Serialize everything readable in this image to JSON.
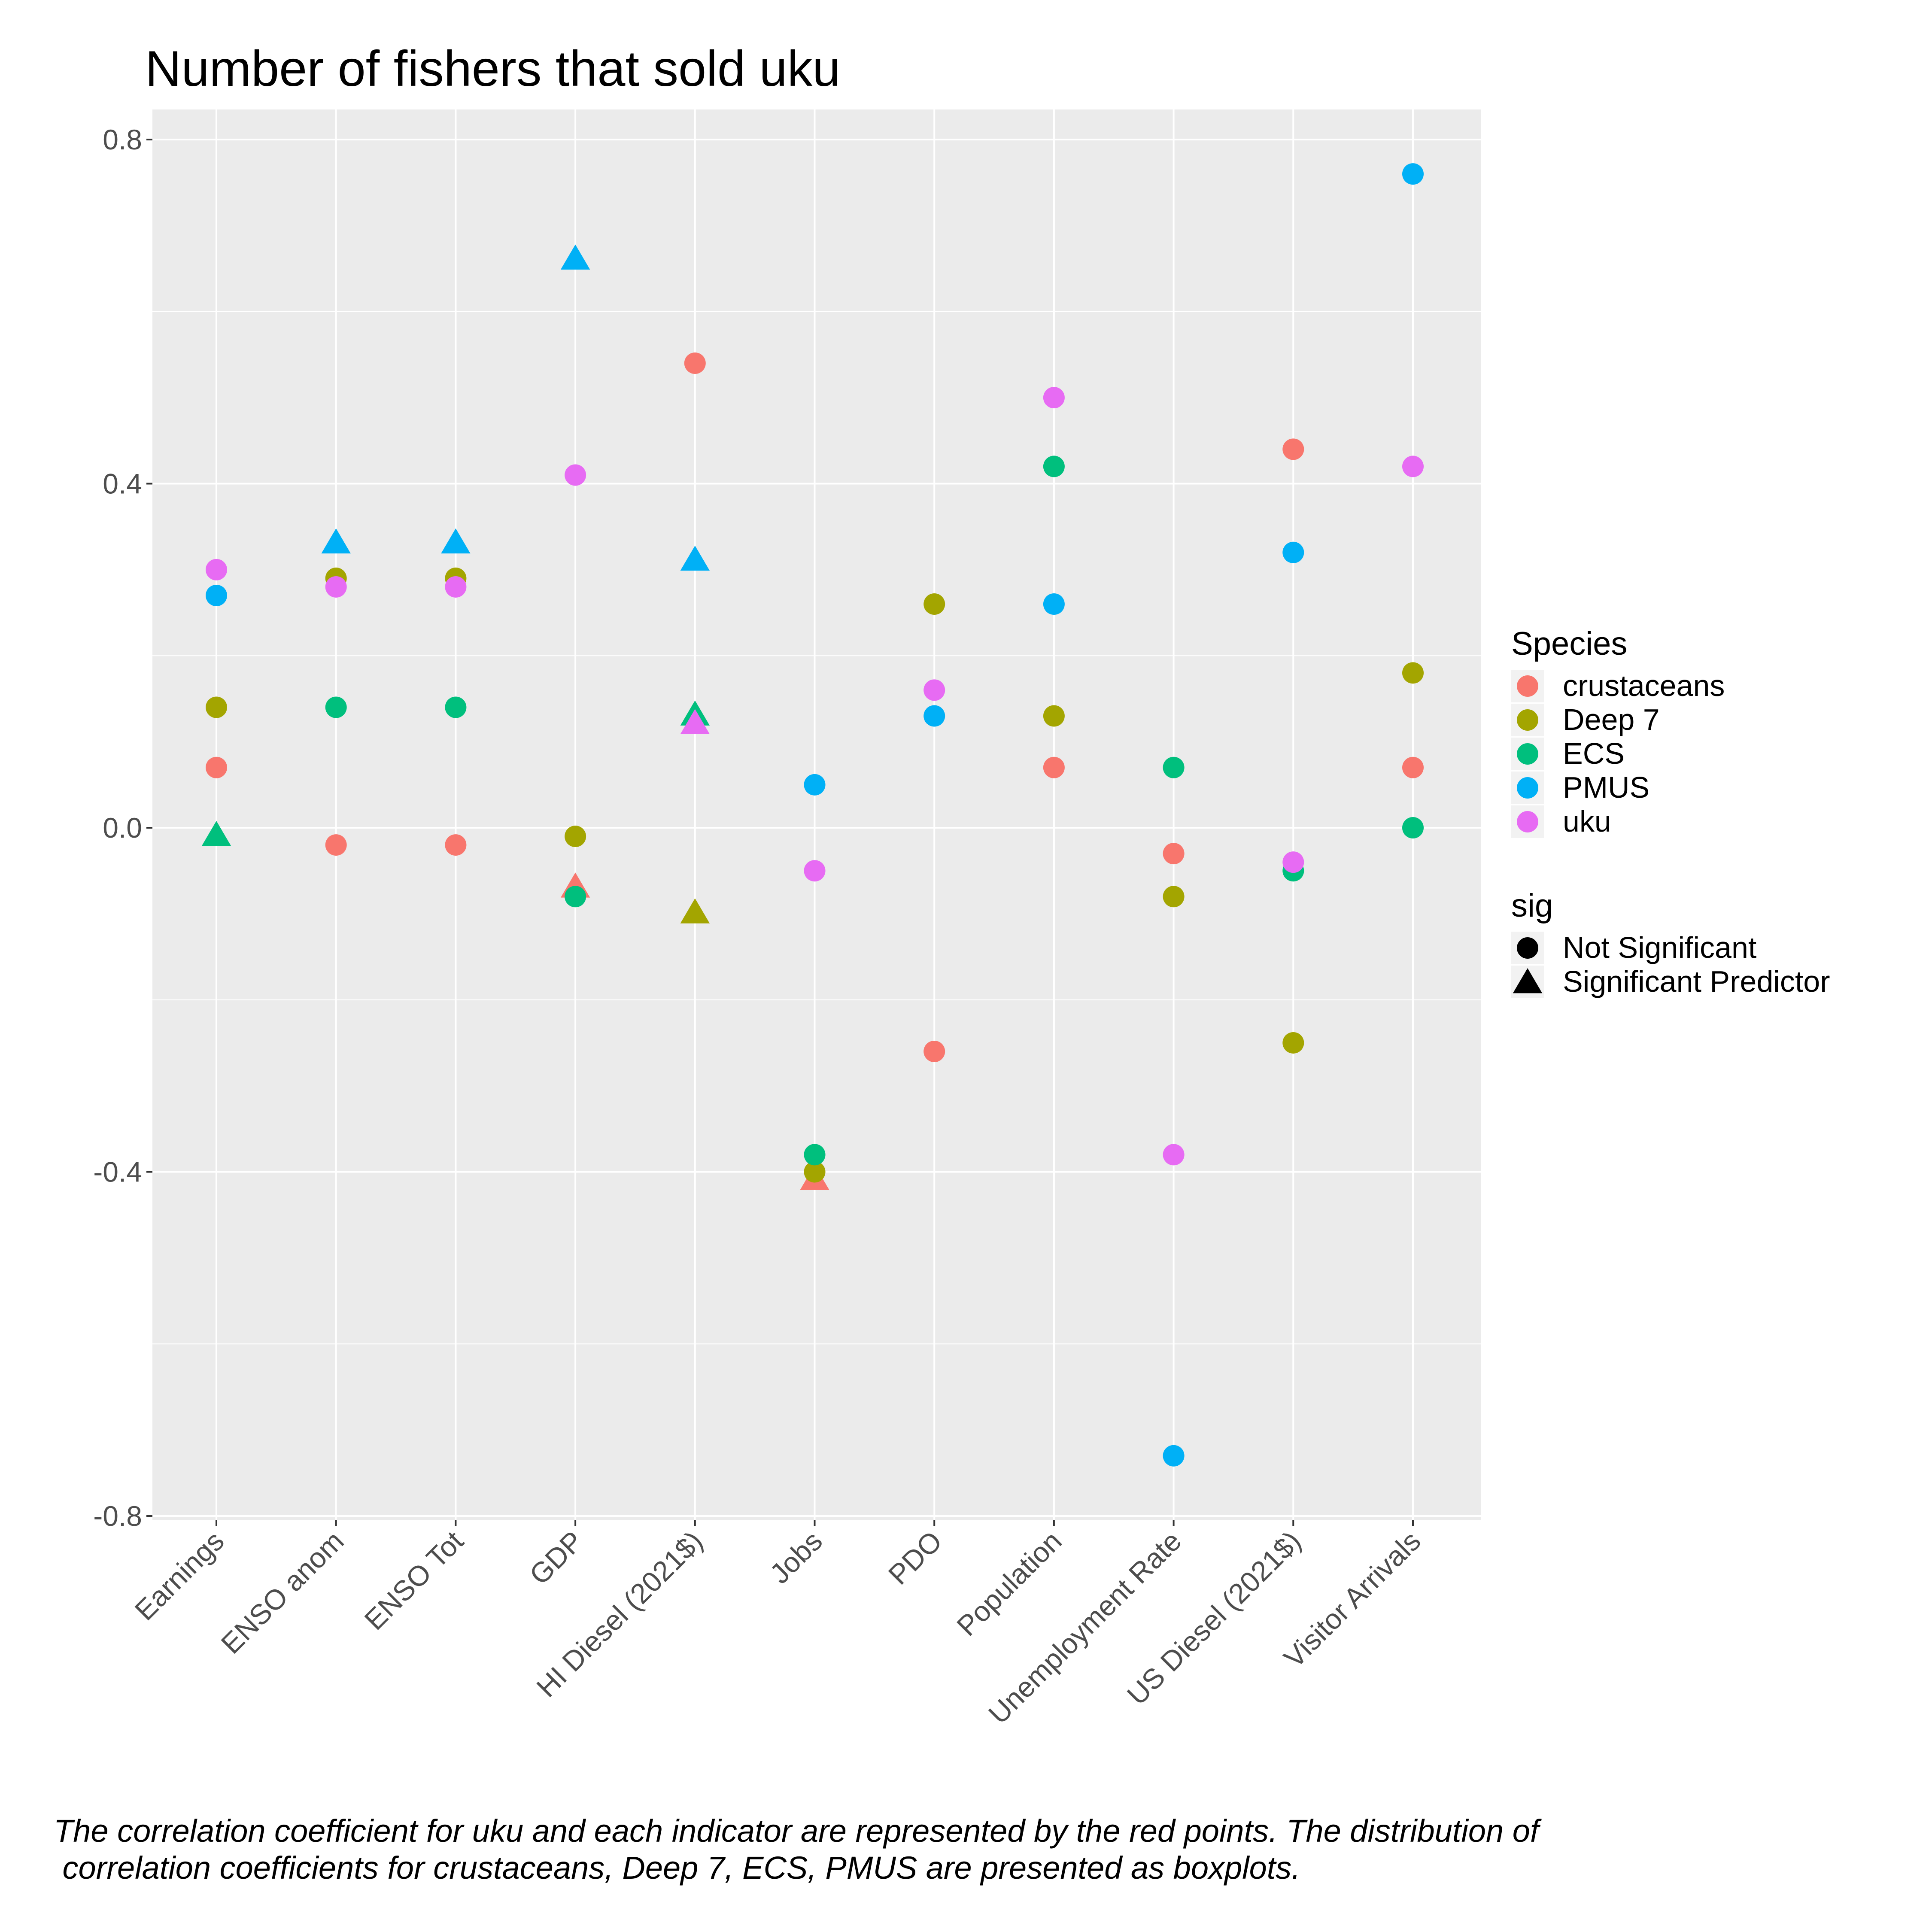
{
  "chart_data": {
    "type": "scatter",
    "title": "Number of fishers that sold uku",
    "xlabel": "",
    "ylabel": "",
    "ylim": [
      -0.8,
      0.8
    ],
    "yticks": [
      -0.8,
      -0.4,
      0.0,
      0.4,
      0.8
    ],
    "ytick_labels": [
      "-0.8",
      "-0.4",
      "0.0",
      "0.4",
      "0.8"
    ],
    "grid": true,
    "legend_position": "right",
    "categories": [
      "Earnings",
      "ENSO anom",
      "ENSO Tot",
      "GDP",
      "HI Diesel (2021$)",
      "Jobs",
      "PDO",
      "Population",
      "Unemployment Rate",
      "US Diesel (2021$)",
      "Visitor Arrivals"
    ],
    "series": [
      {
        "name": "crustaceans",
        "color": "#F8766D",
        "points": [
          {
            "x": "Earnings",
            "y": 0.07,
            "sig": false
          },
          {
            "x": "ENSO anom",
            "y": -0.02,
            "sig": false
          },
          {
            "x": "ENSO Tot",
            "y": -0.02,
            "sig": false
          },
          {
            "x": "GDP",
            "y": -0.07,
            "sig": true
          },
          {
            "x": "HI Diesel (2021$)",
            "y": 0.54,
            "sig": false
          },
          {
            "x": "Jobs",
            "y": -0.41,
            "sig": true
          },
          {
            "x": "PDO",
            "y": -0.26,
            "sig": false
          },
          {
            "x": "Population",
            "y": 0.07,
            "sig": false
          },
          {
            "x": "Unemployment Rate",
            "y": -0.03,
            "sig": false
          },
          {
            "x": "US Diesel (2021$)",
            "y": 0.44,
            "sig": false
          },
          {
            "x": "Visitor Arrivals",
            "y": 0.07,
            "sig": false
          }
        ]
      },
      {
        "name": "Deep 7",
        "color": "#A3A500",
        "points": [
          {
            "x": "Earnings",
            "y": 0.14,
            "sig": false
          },
          {
            "x": "ENSO anom",
            "y": 0.29,
            "sig": false
          },
          {
            "x": "ENSO Tot",
            "y": 0.29,
            "sig": false
          },
          {
            "x": "GDP",
            "y": -0.01,
            "sig": false
          },
          {
            "x": "HI Diesel (2021$)",
            "y": -0.1,
            "sig": true
          },
          {
            "x": "Jobs",
            "y": -0.4,
            "sig": false
          },
          {
            "x": "PDO",
            "y": 0.26,
            "sig": false
          },
          {
            "x": "Population",
            "y": 0.13,
            "sig": false
          },
          {
            "x": "Unemployment Rate",
            "y": -0.08,
            "sig": false
          },
          {
            "x": "US Diesel (2021$)",
            "y": -0.25,
            "sig": false
          },
          {
            "x": "Visitor Arrivals",
            "y": 0.18,
            "sig": false
          }
        ]
      },
      {
        "name": "ECS",
        "color": "#00BF7D",
        "points": [
          {
            "x": "Earnings",
            "y": -0.01,
            "sig": true
          },
          {
            "x": "ENSO anom",
            "y": 0.14,
            "sig": false
          },
          {
            "x": "ENSO Tot",
            "y": 0.14,
            "sig": false
          },
          {
            "x": "GDP",
            "y": -0.08,
            "sig": false
          },
          {
            "x": "HI Diesel (2021$)",
            "y": 0.13,
            "sig": true
          },
          {
            "x": "Jobs",
            "y": -0.38,
            "sig": false
          },
          {
            "x": "Population",
            "y": 0.42,
            "sig": false
          },
          {
            "x": "Unemployment Rate",
            "y": 0.07,
            "sig": false
          },
          {
            "x": "US Diesel (2021$)",
            "y": -0.05,
            "sig": false
          },
          {
            "x": "Visitor Arrivals",
            "y": 0.0,
            "sig": false
          }
        ]
      },
      {
        "name": "PMUS",
        "color": "#00B0F6",
        "points": [
          {
            "x": "Earnings",
            "y": 0.27,
            "sig": false
          },
          {
            "x": "ENSO anom",
            "y": 0.33,
            "sig": true
          },
          {
            "x": "ENSO Tot",
            "y": 0.33,
            "sig": true
          },
          {
            "x": "GDP",
            "y": 0.66,
            "sig": true
          },
          {
            "x": "HI Diesel (2021$)",
            "y": 0.31,
            "sig": true
          },
          {
            "x": "Jobs",
            "y": 0.05,
            "sig": false
          },
          {
            "x": "PDO",
            "y": 0.13,
            "sig": false
          },
          {
            "x": "Population",
            "y": 0.26,
            "sig": false
          },
          {
            "x": "Unemployment Rate",
            "y": -0.73,
            "sig": false
          },
          {
            "x": "US Diesel (2021$)",
            "y": 0.32,
            "sig": false
          },
          {
            "x": "Visitor Arrivals",
            "y": 0.76,
            "sig": false
          }
        ]
      },
      {
        "name": "uku",
        "color": "#E76BF3",
        "points": [
          {
            "x": "Earnings",
            "y": 0.3,
            "sig": false
          },
          {
            "x": "ENSO anom",
            "y": 0.28,
            "sig": false
          },
          {
            "x": "ENSO Tot",
            "y": 0.28,
            "sig": false
          },
          {
            "x": "GDP",
            "y": 0.41,
            "sig": false
          },
          {
            "x": "HI Diesel (2021$)",
            "y": 0.12,
            "sig": true
          },
          {
            "x": "Jobs",
            "y": -0.05,
            "sig": false
          },
          {
            "x": "PDO",
            "y": 0.16,
            "sig": false
          },
          {
            "x": "Population",
            "y": 0.5,
            "sig": false
          },
          {
            "x": "Unemployment Rate",
            "y": -0.38,
            "sig": false
          },
          {
            "x": "US Diesel (2021$)",
            "y": -0.04,
            "sig": false
          },
          {
            "x": "Visitor Arrivals",
            "y": 0.42,
            "sig": false
          }
        ]
      }
    ],
    "legend": {
      "species_title": "Species",
      "sig_title": "sig",
      "sig_items": [
        {
          "label": "Not Significant",
          "shape": "circle"
        },
        {
          "label": "Significant Predictor",
          "shape": "triangle"
        }
      ]
    },
    "caption_lines": [
      "The correlation coefficient for uku and each indicator are represented by the red points. The distribution of",
      " correlation coefficients for crustaceans, Deep 7, ECS, PMUS are presented as boxplots."
    ],
    "colors": {
      "panel_background": "#EBEBEB",
      "grid": "#FFFFFF",
      "tick_text": "#4D4D4D"
    }
  }
}
